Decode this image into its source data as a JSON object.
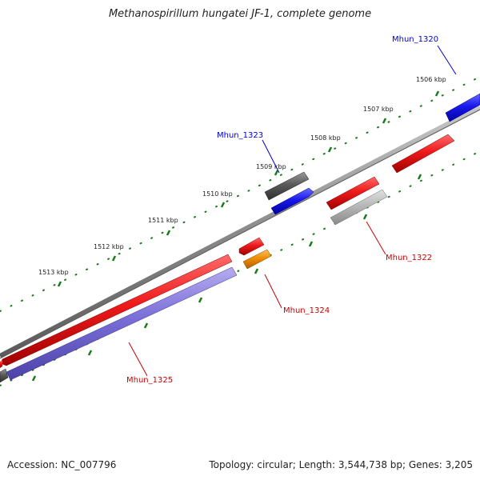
{
  "title": "Methanospirillum hungatei JF-1, complete genome",
  "footer": {
    "accession": "Accession: NC_007796",
    "topology": "Topology: circular; Length: 3,544,738 bp; Genes: 3,205"
  },
  "colors": {
    "backbone": "#8a8a8a",
    "tick": "#1a7a1a",
    "red": "#e41414",
    "blue": "#1414e4",
    "dark_gray": "#5a5a5a",
    "light_gray": "#b5b5b5",
    "orange": "#f08c00",
    "purple": "#7a6ed8",
    "label_red": "#cc0000",
    "label_blue": "#0000cc"
  },
  "kbp_labels": [
    "1506 kbp",
    "1507 kbp",
    "1508 kbp",
    "1509 kbp",
    "1510 kbp",
    "1511 kbp",
    "1512 kbp",
    "1513 kbp"
  ],
  "gene_labels": {
    "g1320": "Mhun_1320",
    "g1322": "Mhun_1322",
    "g1323": "Mhun_1323",
    "g1324": "Mhun_1324",
    "g1325": "Mhun_1325"
  }
}
